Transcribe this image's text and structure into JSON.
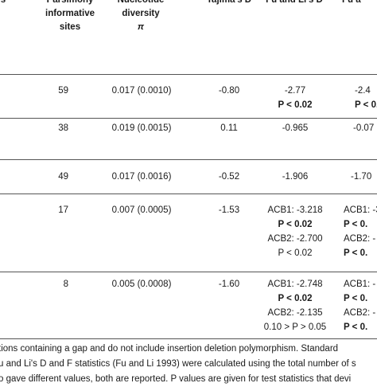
{
  "headers": {
    "prev": "s",
    "parsimony": [
      "Parsimony",
      "informative",
      "sites"
    ],
    "nucleotide": [
      "Nucleotide",
      "diversity",
      "π"
    ],
    "tajima": "Tajima's D",
    "fuli_d": "Fu and Li's D",
    "fuli_f": "Fu a"
  },
  "rows": [
    {
      "sites": "59",
      "div": "0.017 (0.0010)",
      "taj": "-0.80",
      "d": [
        "-2.77",
        "P < 0.02"
      ],
      "f": [
        "-2.4",
        "P < 0."
      ]
    },
    {
      "sites": "38",
      "div": "0.019 (0.0015)",
      "taj": "0.11",
      "d": [
        "-0.965"
      ],
      "f": [
        "-0.07"
      ]
    },
    {
      "sites": "49",
      "div": "0.017 (0.0016)",
      "taj": "-0.52",
      "d": [
        "-1.906"
      ],
      "f": [
        "-1.70"
      ]
    },
    {
      "sites": "17",
      "div": "0.007 (0.0005)",
      "taj": "-1.53",
      "d": [
        "ACB1: -3.218",
        "P < 0.02",
        "ACB2: -2.700",
        "P < 0.02"
      ],
      "f": [
        "ACB1: -3",
        "P < 0.",
        "ACB2: -",
        "P < 0."
      ]
    },
    {
      "sites": "8",
      "div": "0.005 (0.0008)",
      "taj": "-1.60",
      "d": [
        "ACB1: -2.748",
        "P < 0.02",
        "ACB2: -2.135",
        "0.10 > P > 0.05"
      ],
      "f": [
        "ACB1: -",
        "P < 0.",
        "ACB2: -",
        "P < 0."
      ]
    }
  ],
  "footnotes": [
    "tions containing a gap and do not include insertion deletion polymorphism. Standard",
    "u and Li's D and F statistics (Fu and Li 1993) were calculated using the total number of s",
    "o gave different values, both are reported. P values are given for test statistics that devi"
  ]
}
